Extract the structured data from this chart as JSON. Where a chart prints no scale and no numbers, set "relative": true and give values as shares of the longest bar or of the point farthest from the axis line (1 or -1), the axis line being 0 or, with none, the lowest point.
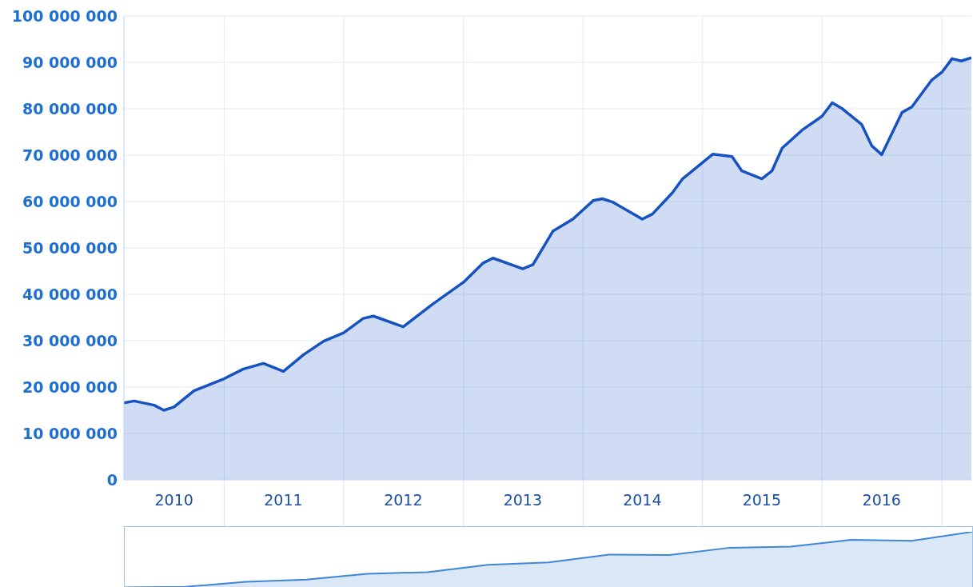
{
  "chart_data": [
    {
      "type": "area",
      "x": [
        "2010-03",
        "2010-04",
        "2010-06",
        "2010-07",
        "2010-08",
        "2010-10",
        "2011-01",
        "2011-03",
        "2011-05",
        "2011-07",
        "2011-09",
        "2011-11",
        "2012-01",
        "2012-03",
        "2012-04",
        "2012-07",
        "2012-10",
        "2013-01",
        "2013-03",
        "2013-04",
        "2013-07",
        "2013-08",
        "2013-10",
        "2013-12",
        "2014-02",
        "2014-03",
        "2014-04",
        "2014-07",
        "2014-08",
        "2014-10",
        "2014-11",
        "2014-12",
        "2015-02",
        "2015-04",
        "2015-05",
        "2015-07",
        "2015-08",
        "2015-09",
        "2015-11",
        "2016-01",
        "2016-02",
        "2016-03",
        "2016-05",
        "2016-06",
        "2016-07",
        "2016-09",
        "2016-10",
        "2016-12",
        "2017-01",
        "2017-02",
        "2017-03",
        "2017-04"
      ],
      "series": [
        {
          "color": "#1652c2",
          "values": [
            16600000,
            17000000,
            16100000,
            15000000,
            15700000,
            19200000,
            21800000,
            23900000,
            25100000,
            23400000,
            27000000,
            29900000,
            31700000,
            34800000,
            35300000,
            33000000,
            38000000,
            42600000,
            46700000,
            47800000,
            45500000,
            46400000,
            53600000,
            56200000,
            60200000,
            60600000,
            59900000,
            56200000,
            57300000,
            61900000,
            64900000,
            66600000,
            70200000,
            69700000,
            66600000,
            64900000,
            66600000,
            71500000,
            75400000,
            78400000,
            81300000,
            80100000,
            76600000,
            72000000,
            70100000,
            79200000,
            80400000,
            86200000,
            87900000,
            90800000,
            90300000,
            91000000
          ]
        }
      ],
      "xlim": [
        "2010-03",
        "2017-04"
      ],
      "xticks": [
        {
          "value": "2010-08",
          "label": "2010"
        },
        {
          "value": "2011-01",
          "label": null
        },
        {
          "value": "2011-07",
          "label": "2011"
        },
        {
          "value": "2012-01",
          "label": null
        },
        {
          "value": "2012-07",
          "label": "2012"
        },
        {
          "value": "2013-01",
          "label": null
        },
        {
          "value": "2013-07",
          "label": "2013"
        },
        {
          "value": "2014-01",
          "label": null
        },
        {
          "value": "2014-07",
          "label": "2014"
        },
        {
          "value": "2015-01",
          "label": null
        },
        {
          "value": "2015-07",
          "label": "2015"
        },
        {
          "value": "2016-01",
          "label": null
        },
        {
          "value": "2016-07",
          "label": "2016"
        },
        {
          "value": "2017-01",
          "label": null
        }
      ],
      "ylim": [
        0,
        100000000
      ],
      "yticks": [
        {
          "value": 0,
          "label": "0"
        },
        {
          "value": 10000000,
          "label": "10 000 000"
        },
        {
          "value": 20000000,
          "label": "20 000 000"
        },
        {
          "value": 30000000,
          "label": "30 000 000"
        },
        {
          "value": 40000000,
          "label": "40 000 000"
        },
        {
          "value": 50000000,
          "label": "50 000 000"
        },
        {
          "value": 60000000,
          "label": "60 000 000"
        },
        {
          "value": 70000000,
          "label": "70 000 000"
        },
        {
          "value": 80000000,
          "label": "80 000 000"
        },
        {
          "value": 90000000,
          "label": "90 000 000"
        },
        {
          "value": 100000000,
          "label": "100 000 000"
        }
      ],
      "grid": true
    },
    {
      "type": "area",
      "relative": true,
      "tick_labels": false,
      "categories": [
        null,
        null,
        null,
        null,
        null,
        null,
        null,
        null,
        null,
        null,
        null,
        null,
        null,
        null,
        null
      ],
      "series": [
        {
          "color": "#3f86d6",
          "values": [
            0.02,
            0.03,
            0.12,
            0.16,
            0.26,
            0.29,
            0.42,
            0.46,
            0.6,
            0.59,
            0.72,
            0.74,
            0.86,
            0.84,
            1
          ]
        }
      ]
    }
  ]
}
